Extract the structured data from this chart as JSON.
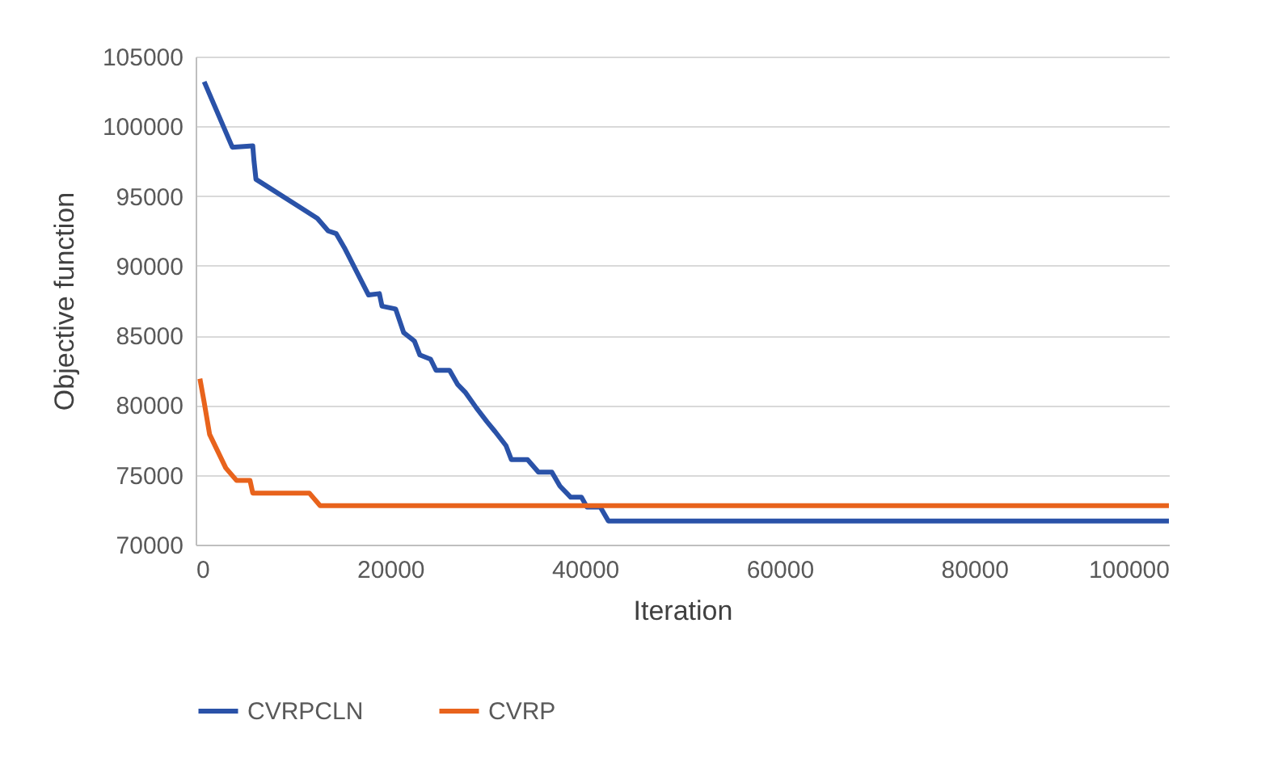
{
  "chart_data": {
    "type": "line",
    "xlabel": "Iteration",
    "ylabel": "Objective function",
    "xlim": [
      0,
      100000
    ],
    "xticks": [
      0,
      20000,
      40000,
      60000,
      80000,
      100000
    ],
    "ylim": [
      70000,
      105000
    ],
    "yticks": [
      70000,
      75000,
      80000,
      85000,
      90000,
      95000,
      100000,
      105000
    ],
    "grid": "y",
    "legend": "bottom",
    "marker": "none",
    "line_style": "solid",
    "series": [
      {
        "name": "CVRPCLN",
        "color": "#2a52a8",
        "x": [
          880,
          3770,
          5870,
          6000,
          6200,
          12510,
          13620,
          14450,
          15280,
          17770,
          18880,
          19150,
          20550,
          21380,
          22480,
          23040,
          24140,
          24700,
          26090,
          26910,
          27740,
          28850,
          29950,
          30780,
          31890,
          32440,
          34100,
          35220,
          36600,
          37430,
          38540,
          39650,
          40200,
          41580,
          42410,
          100000
        ],
        "values": [
          103200,
          98500,
          98600,
          97500,
          96200,
          93400,
          92500,
          92300,
          91300,
          87900,
          88000,
          87100,
          86900,
          85200,
          84600,
          83600,
          83300,
          82500,
          82500,
          81500,
          80900,
          79800,
          78800,
          78100,
          77100,
          76100,
          76100,
          75200,
          75200,
          74200,
          73400,
          73400,
          72700,
          72700,
          71700,
          71700
        ]
      },
      {
        "name": "CVRP",
        "color": "#e8631c",
        "x": [
          440,
          880,
          1440,
          2270,
          3100,
          4210,
          5590,
          5870,
          11680,
          12790,
          100000
        ],
        "values": [
          81900,
          80200,
          77900,
          76700,
          75500,
          74600,
          74600,
          73700,
          73700,
          72800,
          72800
        ]
      }
    ]
  }
}
